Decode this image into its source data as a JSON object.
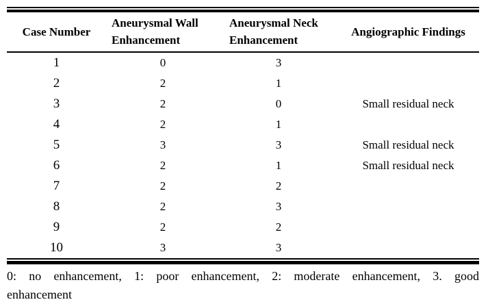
{
  "table": {
    "columns": [
      {
        "id": "case_number",
        "lines": [
          "Case Number"
        ]
      },
      {
        "id": "wall_enhancement",
        "lines": [
          "Aneurysmal Wall",
          "Enhancement"
        ]
      },
      {
        "id": "neck_enhancement",
        "lines": [
          "Aneurysmal Neck",
          "Enhancement"
        ]
      },
      {
        "id": "angiographic_findings",
        "lines": [
          "Angiographic Findings"
        ]
      }
    ],
    "rows": [
      [
        "1",
        "0",
        "3",
        ""
      ],
      [
        "2",
        "2",
        "1",
        ""
      ],
      [
        "3",
        "2",
        "0",
        "Small residual neck"
      ],
      [
        "4",
        "2",
        "1",
        ""
      ],
      [
        "5",
        "3",
        "3",
        "Small residual neck"
      ],
      [
        "6",
        "2",
        "1",
        "Small residual neck"
      ],
      [
        "7",
        "2",
        "2",
        ""
      ],
      [
        "8",
        "2",
        "3",
        ""
      ],
      [
        "9",
        "2",
        "2",
        ""
      ],
      [
        "10",
        "3",
        "3",
        ""
      ]
    ],
    "footnote": {
      "lines": [
        "0: no enhancement, 1: poor enhancement, 2: moderate enhancement, 3. good",
        "enhancement"
      ]
    },
    "colors": {
      "text": "#000000",
      "rule": "#000000",
      "background": "#ffffff"
    }
  }
}
